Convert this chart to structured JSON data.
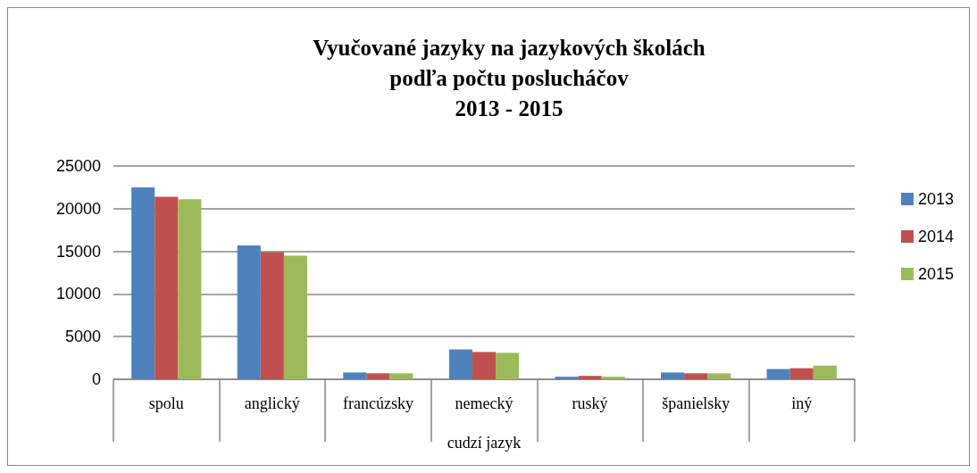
{
  "chart_data": {
    "type": "bar",
    "title": "Vyučované jazyky na jazykových školách\npodľa počtu poslucháčov\n2013 - 2015",
    "xlabel": "cudzí jazyk",
    "categories": [
      "spolu",
      "anglický",
      "francúzsky",
      "nemecký",
      "ruský",
      "španielsky",
      "iný"
    ],
    "series": [
      {
        "name": "2013",
        "color": "#4f81bd",
        "values": [
          22500,
          15700,
          800,
          3500,
          300,
          800,
          1200
        ]
      },
      {
        "name": "2014",
        "color": "#c0504d",
        "values": [
          21400,
          14900,
          700,
          3200,
          400,
          700,
          1300
        ]
      },
      {
        "name": "2015",
        "color": "#9bbb59",
        "values": [
          21100,
          14500,
          700,
          3100,
          300,
          700,
          1600
        ]
      }
    ],
    "ylim": [
      0,
      25000
    ],
    "yticks": [
      0,
      5000,
      10000,
      15000,
      20000,
      25000
    ],
    "grid": "y",
    "legend": "right"
  }
}
